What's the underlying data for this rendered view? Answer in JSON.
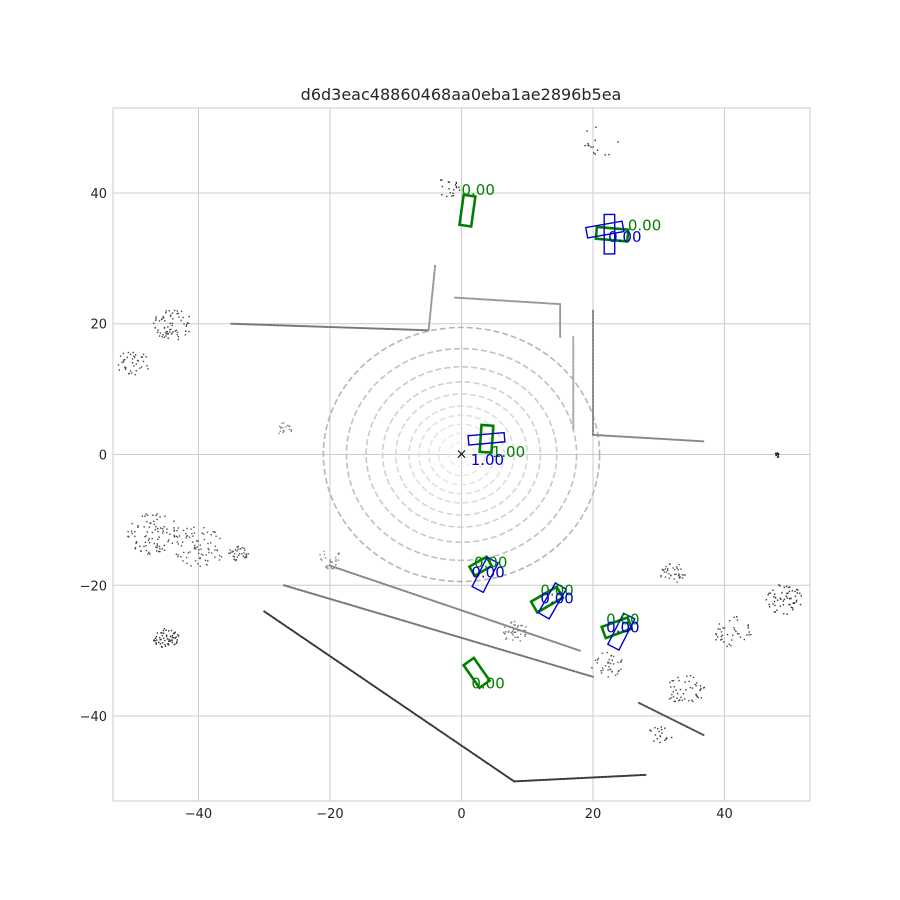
{
  "chart_data": {
    "type": "scatter",
    "title": "d6d3eac48860468aa0eba1ae2896b5ea",
    "xlim": [
      -53,
      53
    ],
    "ylim": [
      -53,
      53
    ],
    "x_ticks": [
      -40,
      -20,
      0,
      20,
      40
    ],
    "y_ticks": [
      40,
      20,
      0,
      -20,
      -40
    ],
    "grid": true,
    "ego_marker": {
      "x": 0,
      "y": 0,
      "symbol": "×"
    },
    "colors": {
      "ground_truth": "#008000",
      "prediction": "#0000cc",
      "grid": "#cccccc",
      "axes": "#cccccc"
    },
    "ground_truth_boxes": [
      {
        "cx": 0.9,
        "cy": 37.3,
        "w": 1.8,
        "l": 4.6,
        "yaw_deg": 8,
        "score": "0.00"
      },
      {
        "cx": 22.9,
        "cy": 33.7,
        "w": 1.8,
        "l": 4.8,
        "yaw_deg": 95,
        "score": "0.00"
      },
      {
        "cx": 3.8,
        "cy": 2.4,
        "w": 1.8,
        "l": 4.1,
        "yaw_deg": 4,
        "score": "1.00"
      },
      {
        "cx": 2.9,
        "cy": -17.1,
        "w": 1.6,
        "l": 3.0,
        "yaw_deg": 60,
        "score": "0.00"
      },
      {
        "cx": 13.0,
        "cy": -22.2,
        "w": 1.9,
        "l": 4.5,
        "yaw_deg": 60,
        "score": "0.00"
      },
      {
        "cx": 23.6,
        "cy": -26.5,
        "w": 1.8,
        "l": 4.2,
        "yaw_deg": 70,
        "score": "0.00"
      },
      {
        "cx": 2.3,
        "cy": -33.4,
        "w": 1.9,
        "l": 4.2,
        "yaw_deg": -35,
        "score": "0.00"
      }
    ],
    "prediction_boxes": [
      {
        "cx": 22.5,
        "cy": 33.7,
        "w": 1.6,
        "l": 6.0,
        "yaw_deg": 0,
        "score": "0.00"
      },
      {
        "cx": 21.8,
        "cy": 34.4,
        "w": 1.6,
        "l": 5.6,
        "yaw_deg": 80,
        "score": "0.00"
      },
      {
        "cx": 3.8,
        "cy": 2.4,
        "w": 1.4,
        "l": 5.5,
        "yaw_deg": 85,
        "score": "1.00"
      },
      {
        "cx": 3.6,
        "cy": -18.4,
        "w": 1.9,
        "l": 5.0,
        "yaw_deg": 27,
        "score": "0.00"
      },
      {
        "cx": 13.8,
        "cy": -22.4,
        "w": 1.9,
        "l": 5.2,
        "yaw_deg": 30,
        "score": "0.00"
      },
      {
        "cx": 24.3,
        "cy": -27.1,
        "w": 1.9,
        "l": 5.3,
        "yaw_deg": 27,
        "score": "0.00"
      }
    ],
    "score_labels": [
      {
        "x": 0.0,
        "y": 39.7,
        "text": "0.00",
        "set": "ground_truth"
      },
      {
        "x": 25.3,
        "y": 34.3,
        "text": "0.00",
        "set": "ground_truth"
      },
      {
        "x": 22.3,
        "y": 32.5,
        "text": "0.00",
        "set": "prediction"
      },
      {
        "x": 4.6,
        "y": -0.4,
        "text": "1.00",
        "set": "ground_truth"
      },
      {
        "x": 1.4,
        "y": -1.6,
        "text": "1.00",
        "set": "prediction"
      },
      {
        "x": 1.9,
        "y": -17.3,
        "text": "0.00",
        "set": "ground_truth"
      },
      {
        "x": 1.5,
        "y": -18.8,
        "text": "0.00",
        "set": "prediction"
      },
      {
        "x": 12.0,
        "y": -21.6,
        "text": "0.00",
        "set": "ground_truth"
      },
      {
        "x": 12.0,
        "y": -22.8,
        "text": "0.00",
        "set": "prediction"
      },
      {
        "x": 22.0,
        "y": -26.0,
        "text": "0.00",
        "set": "ground_truth"
      },
      {
        "x": 22.0,
        "y": -27.2,
        "text": "0.00",
        "set": "prediction"
      },
      {
        "x": 1.5,
        "y": -35.8,
        "text": "0.00",
        "set": "ground_truth"
      }
    ],
    "lidar_segments": [
      {
        "x1": -30,
        "y1": -24,
        "x2": 8,
        "y2": -50,
        "shade": "#3a3a3a"
      },
      {
        "x1": 8,
        "y1": -50,
        "x2": 28,
        "y2": -49,
        "shade": "#3a3a3a"
      },
      {
        "x1": -35,
        "y1": 20,
        "x2": -5,
        "y2": 19,
        "shade": "#777777"
      },
      {
        "x1": -5,
        "y1": 19,
        "x2": -4,
        "y2": 29,
        "shade": "#999999"
      },
      {
        "x1": -1,
        "y1": 24,
        "x2": 15,
        "y2": 23,
        "shade": "#999999"
      },
      {
        "x1": 15,
        "y1": 23,
        "x2": 15,
        "y2": 18,
        "shade": "#999999"
      },
      {
        "x1": 17,
        "y1": 18,
        "x2": 17,
        "y2": 4,
        "shade": "#aaaaaa"
      },
      {
        "x1": 20,
        "y1": 22,
        "x2": 20,
        "y2": 3,
        "shade": "#888888"
      },
      {
        "x1": 20,
        "y1": 3,
        "x2": 37,
        "y2": 2,
        "shade": "#888888"
      },
      {
        "x1": -27,
        "y1": -20,
        "x2": 20,
        "y2": -34,
        "shade": "#777777"
      },
      {
        "x1": -20,
        "y1": -17,
        "x2": 18,
        "y2": -30,
        "shade": "#888888"
      },
      {
        "x1": 27,
        "y1": -38,
        "x2": 37,
        "y2": -43,
        "shade": "#555555"
      }
    ],
    "lidar_rings": [
      {
        "r": 2,
        "shade": "#ededed"
      },
      {
        "r": 3.5,
        "shade": "#e8e8e8"
      },
      {
        "r": 5,
        "shade": "#e4e4e4"
      },
      {
        "r": 6.5,
        "shade": "#e0e0e0"
      },
      {
        "r": 8,
        "shade": "#dcdcdc"
      },
      {
        "r": 10,
        "shade": "#d6d6d6"
      },
      {
        "r": 12,
        "shade": "#d0d0d0"
      },
      {
        "r": 14.5,
        "shade": "#c9c9c9"
      },
      {
        "r": 17.5,
        "shade": "#c0c0c0"
      },
      {
        "r": 21,
        "shade": "#b6b6b6"
      }
    ],
    "lidar_clusters": [
      {
        "x": -44,
        "y": 20,
        "spread": 3,
        "n": 70,
        "shade": "#444444"
      },
      {
        "x": -50,
        "y": 14,
        "spread": 2.5,
        "n": 40,
        "shade": "#444444"
      },
      {
        "x": -47,
        "y": -12,
        "spread": 4,
        "n": 90,
        "shade": "#444444"
      },
      {
        "x": -40,
        "y": -14,
        "spread": 4,
        "n": 80,
        "shade": "#555555"
      },
      {
        "x": -34,
        "y": -15,
        "spread": 1.5,
        "n": 40,
        "shade": "#555555"
      },
      {
        "x": -45,
        "y": -28,
        "spread": 2,
        "n": 60,
        "shade": "#333333"
      },
      {
        "x": 49,
        "y": -22,
        "spread": 3,
        "n": 60,
        "shade": "#333333"
      },
      {
        "x": 41,
        "y": -27,
        "spread": 3,
        "n": 40,
        "shade": "#444444"
      },
      {
        "x": 34,
        "y": -36,
        "spread": 3,
        "n": 50,
        "shade": "#444444"
      },
      {
        "x": 32,
        "y": -18,
        "spread": 2,
        "n": 40,
        "shade": "#555555"
      },
      {
        "x": 8,
        "y": -27,
        "spread": 2,
        "n": 40,
        "shade": "#777777"
      },
      {
        "x": 22,
        "y": -32,
        "spread": 2.5,
        "n": 40,
        "shade": "#555555"
      },
      {
        "x": -27,
        "y": 4,
        "spread": 1.2,
        "n": 20,
        "shade": "#888888"
      },
      {
        "x": -20,
        "y": -16,
        "spread": 2,
        "n": 30,
        "shade": "#888888"
      },
      {
        "x": -2,
        "y": 41,
        "spread": 2,
        "n": 20,
        "shade": "#333333"
      },
      {
        "x": 21,
        "y": 48,
        "spread": 3,
        "n": 15,
        "shade": "#333333"
      },
      {
        "x": 48,
        "y": 0,
        "spread": 0.5,
        "n": 10,
        "shade": "#111111"
      },
      {
        "x": 30,
        "y": -43,
        "spread": 2,
        "n": 20,
        "shade": "#333333"
      }
    ]
  }
}
